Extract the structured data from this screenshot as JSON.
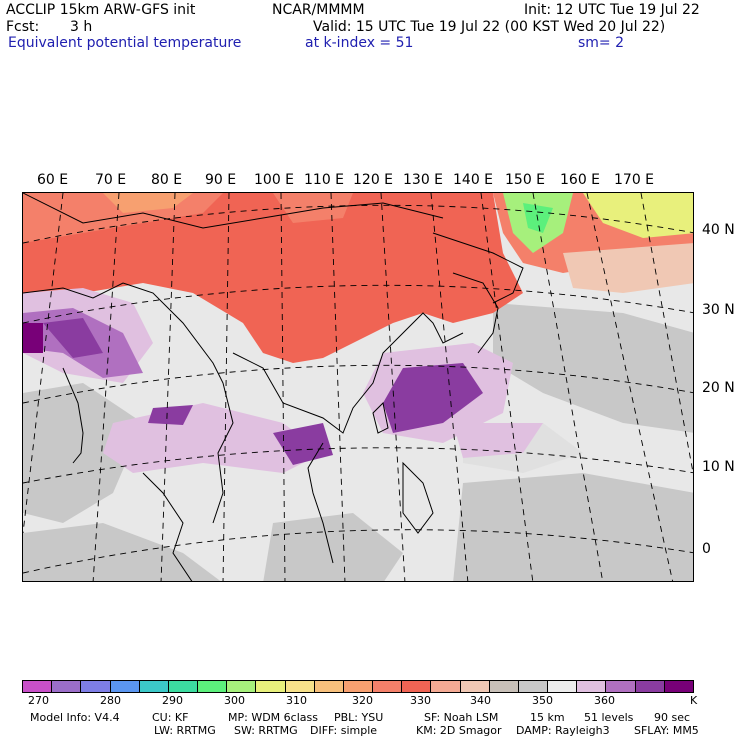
{
  "header": {
    "model": "ACCLIP 15km ARW-GFS init",
    "org": "NCAR/MMMM",
    "init": "Init: 12 UTC Tue 19 Jul 22",
    "fcst_label": "Fcst:",
    "fcst_value": "3 h",
    "valid": "Valid: 15 UTC Tue 19 Jul 22 (00 KST Wed 20 Jul 22)",
    "field": "Equivalent potential temperature",
    "level": "at k-index =  51",
    "smooth": "sm= 2"
  },
  "map": {
    "lon_labels": [
      "60 E",
      "70 E",
      "80 E",
      "90 E",
      "100 E",
      "110 E",
      "120 E",
      "130 E",
      "140 E",
      "150 E",
      "160 E",
      "170 E"
    ],
    "lat_labels": [
      "40 N",
      "30 N",
      "20 N",
      "10 N",
      "0"
    ]
  },
  "colorbar": {
    "colors": [
      "#c850c8",
      "#9b6ec9",
      "#7e7ee6",
      "#5b96f0",
      "#3cc8c8",
      "#3cdca0",
      "#5cf07c",
      "#a6f07c",
      "#e8f07c",
      "#f7e18a",
      "#f7c07c",
      "#f7a070",
      "#f4806a",
      "#f06454",
      "#f4aa94",
      "#f0c8b4",
      "#c8c0b8",
      "#c8c8c8",
      "#ececec",
      "#e0c0e0",
      "#b070c0",
      "#8a3ca0",
      "#780078"
    ],
    "labels": [
      "270",
      "280",
      "290",
      "300",
      "310",
      "320",
      "330",
      "340",
      "350",
      "360",
      "K"
    ]
  },
  "footer": {
    "line1": [
      "Model Info: V4.4",
      "CU: KF",
      "MP: WDM 6class",
      "PBL: YSU",
      "SF: Noah LSM",
      "15 km",
      "51 levels",
      "90 sec"
    ],
    "line2": [
      "LW: RRTMG",
      "SW: RRTMG",
      "DIFF: simple",
      "KM: 2D Smagor",
      "DAMP: Rayleigh3",
      "SFLAY: MM5"
    ]
  }
}
